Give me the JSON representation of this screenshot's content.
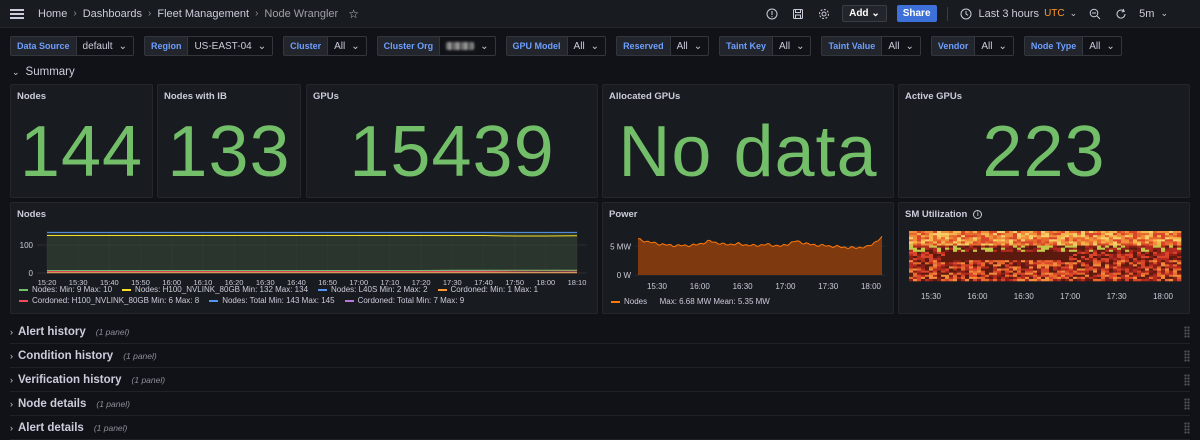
{
  "breadcrumb": {
    "home": "Home",
    "dashboards": "Dashboards",
    "folder": "Fleet Management",
    "current": "Node Wrangler"
  },
  "toolbar": {
    "add_label": "Add",
    "share_label": "Share",
    "time_range": "Last 3 hours",
    "timezone": "UTC",
    "refresh_interval": "5m"
  },
  "variables": [
    {
      "label": "Data Source",
      "value": "default"
    },
    {
      "label": "Region",
      "value": "US-EAST-04"
    },
    {
      "label": "Cluster",
      "value": "All"
    },
    {
      "label": "Cluster Org",
      "value": ""
    },
    {
      "label": "GPU Model",
      "value": "All"
    },
    {
      "label": "Reserved",
      "value": "All"
    },
    {
      "label": "Taint Key",
      "value": "All"
    },
    {
      "label": "Taint Value",
      "value": "All"
    },
    {
      "label": "Vendor",
      "value": "All"
    },
    {
      "label": "Node Type",
      "value": "All"
    }
  ],
  "summary": {
    "label": "Summary"
  },
  "stats": [
    {
      "title": "Nodes",
      "value": "144"
    },
    {
      "title": "Nodes with IB",
      "value": "133"
    },
    {
      "title": "GPUs",
      "value": "15439"
    },
    {
      "title": "Allocated GPUs",
      "value": "No data"
    },
    {
      "title": "Active GPUs",
      "value": "223"
    }
  ],
  "nodes_chart": {
    "title": "Nodes",
    "type": "line",
    "x": [
      "15:20",
      "15:30",
      "15:40",
      "15:50",
      "16:00",
      "16:10",
      "16:20",
      "16:30",
      "16:40",
      "16:50",
      "17:00",
      "17:10",
      "17:20",
      "17:30",
      "17:40",
      "17:50",
      "18:00",
      "18:10"
    ],
    "yticks": [
      "100",
      "0"
    ],
    "ylim": [
      0,
      150
    ],
    "legend": [
      {
        "label": "Nodes:",
        "stats": "Min: 9   Max: 10",
        "color": "#73bf69"
      },
      {
        "label": "Nodes: H100_NVLINK_80GB",
        "stats": "Min: 132   Max: 134",
        "color": "#fade2a"
      },
      {
        "label": "Nodes: L40S",
        "stats": "Min: 2   Max: 2",
        "color": "#5794f2"
      },
      {
        "label": "Cordoned:",
        "stats": "Min: 1   Max: 1",
        "color": "#ff9830"
      },
      {
        "label": "Cordoned: H100_NVLINK_80GB",
        "stats": "Min: 6   Max: 8",
        "color": "#f2495c"
      },
      {
        "label": "Nodes: Total",
        "stats": "Min: 143   Max: 145",
        "color": "#5794f2"
      },
      {
        "label": "Cordoned: Total",
        "stats": "Min: 7   Max: 9",
        "color": "#b877d9"
      }
    ]
  },
  "power_chart": {
    "title": "Power",
    "type": "area",
    "x": [
      "15:30",
      "16:00",
      "16:30",
      "17:00",
      "17:30",
      "18:00"
    ],
    "yticks": [
      "5 MW",
      "0 W"
    ],
    "legend": {
      "label": "Nodes",
      "stats": "Max: 6.68 MW   Mean: 5.35 MW",
      "color": "#ff780a"
    }
  },
  "sm_chart": {
    "title": "SM Utilization",
    "type": "heatmap",
    "x": [
      "15:30",
      "16:00",
      "16:30",
      "17:00",
      "17:30",
      "18:00"
    ]
  },
  "chart_data": [
    {
      "type": "line",
      "x": [
        "15:20",
        "15:30",
        "15:40",
        "15:50",
        "16:00",
        "16:10",
        "16:20",
        "16:30",
        "16:40",
        "16:50",
        "17:00",
        "17:10",
        "17:20",
        "17:30",
        "17:40",
        "17:50",
        "18:00",
        "18:10"
      ],
      "ylim": [
        0,
        150
      ],
      "series": [
        {
          "name": "Nodes: Total",
          "values": [
            145,
            145,
            145,
            145,
            145,
            145,
            145,
            145,
            145,
            145,
            145,
            145,
            145,
            145,
            145,
            145,
            145,
            145
          ]
        },
        {
          "name": "Nodes: H100_NVLINK_80GB",
          "values": [
            134,
            134,
            134,
            134,
            134,
            134,
            134,
            134,
            134,
            134,
            134,
            134,
            134,
            134,
            134,
            132,
            132,
            133
          ]
        },
        {
          "name": "Cordoned: Total",
          "values": [
            7,
            7,
            7,
            7,
            7,
            7,
            7,
            7,
            7,
            7,
            7,
            7,
            7,
            7,
            7,
            8,
            9,
            8
          ]
        },
        {
          "name": "Cordoned: H100_NVLINK_80GB",
          "values": [
            6,
            6,
            6,
            6,
            6,
            6,
            6,
            6,
            6,
            6,
            6,
            6,
            6,
            6,
            6,
            7,
            8,
            7
          ]
        },
        {
          "name": "Nodes:",
          "values": [
            9,
            9,
            9,
            9,
            9,
            9,
            9,
            9,
            9,
            9,
            9,
            9,
            9,
            10,
            10,
            10,
            10,
            10
          ]
        },
        {
          "name": "Nodes: L40S",
          "values": [
            2,
            2,
            2,
            2,
            2,
            2,
            2,
            2,
            2,
            2,
            2,
            2,
            2,
            2,
            2,
            2,
            2,
            2
          ]
        },
        {
          "name": "Cordoned:",
          "values": [
            1,
            1,
            1,
            1,
            1,
            1,
            1,
            1,
            1,
            1,
            1,
            1,
            1,
            1,
            1,
            1,
            1,
            1
          ]
        }
      ]
    },
    {
      "type": "area",
      "x": [
        "15:20",
        "15:30",
        "15:40",
        "15:50",
        "16:00",
        "16:10",
        "16:20",
        "16:30",
        "16:40",
        "16:50",
        "17:00",
        "17:10",
        "17:20",
        "17:30",
        "17:40",
        "17:50",
        "18:00",
        "18:10"
      ],
      "ylim": [
        0,
        8
      ],
      "series": [
        {
          "name": "Nodes",
          "values": [
            6.2,
            5.6,
            5.2,
            5.1,
            5.2,
            5.9,
            5.3,
            5.4,
            5.1,
            5.3,
            5.0,
            5.9,
            5.3,
            5.1,
            4.9,
            4.7,
            4.9,
            6.5
          ]
        }
      ]
    }
  ],
  "rows": [
    {
      "title": "Alert history",
      "count": "(1 panel)"
    },
    {
      "title": "Condition history",
      "count": "(1 panel)"
    },
    {
      "title": "Verification history",
      "count": "(1 panel)"
    },
    {
      "title": "Node details",
      "count": "(1 panel)"
    },
    {
      "title": "Alert details",
      "count": "(1 panel)"
    }
  ]
}
